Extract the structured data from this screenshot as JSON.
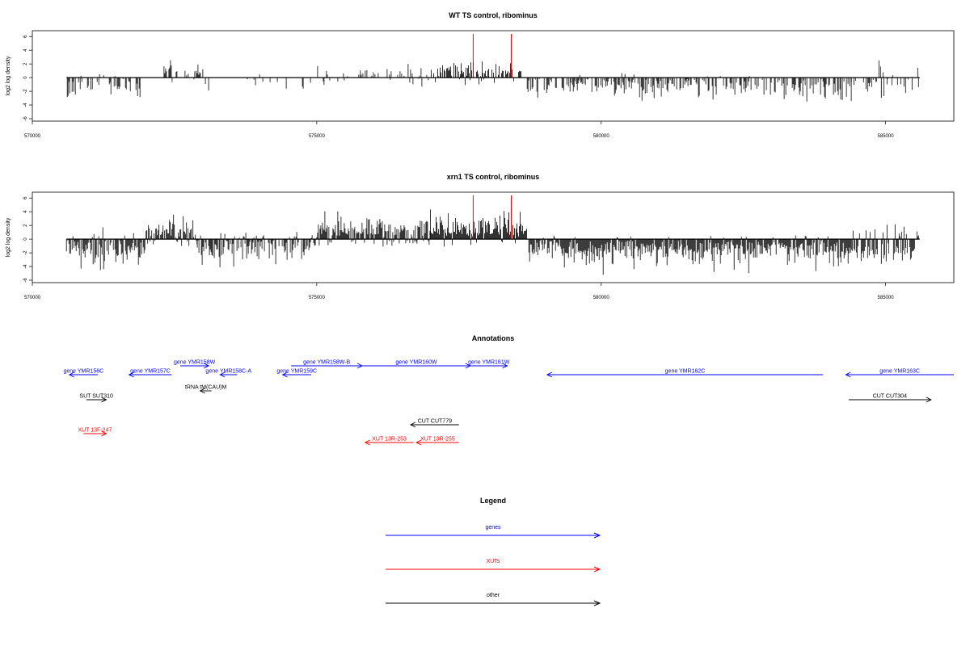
{
  "chart_data": [
    {
      "type": "bar",
      "title": "WT TS control, ribominus",
      "ylabel": "log2 log density",
      "xlabel": "",
      "xlim": [
        570000,
        586200
      ],
      "ylim": [
        -6,
        6.5
      ],
      "x_ticks": [
        "570000",
        "575000",
        "580000",
        "585000"
      ],
      "y_ticks": [
        "6",
        "4",
        "2",
        "0",
        "-2",
        "-4",
        "-6"
      ],
      "grid": false,
      "description_of_data": "per-position log2 density bars from 570600 to 585600; dense positive signal 577000-578600; mostly negative 578700-585600",
      "segments": [
        {
          "from": 570600,
          "to": 571900,
          "density": 0.45,
          "pos_frac": 0.05,
          "pos_max": 1.2,
          "neg_max": 4.2
        },
        {
          "from": 572300,
          "to": 573000,
          "density": 0.5,
          "pos_frac": 0.85,
          "pos_max": 3.2,
          "neg_max": 1.5
        },
        {
          "from": 573000,
          "to": 575000,
          "density": 0.12,
          "pos_frac": 0.3,
          "pos_max": 1.2,
          "neg_max": 2.6
        },
        {
          "from": 575000,
          "to": 577000,
          "density": 0.3,
          "pos_frac": 0.65,
          "pos_max": 2.6,
          "neg_max": 1.6
        },
        {
          "from": 577000,
          "to": 578600,
          "density": 0.65,
          "pos_frac": 0.85,
          "pos_max": 3.4,
          "neg_max": 1.5
        },
        {
          "from": 578700,
          "to": 581000,
          "density": 0.6,
          "pos_frac": 0.08,
          "pos_max": 1.2,
          "neg_max": 4.0
        },
        {
          "from": 581000,
          "to": 584400,
          "density": 0.55,
          "pos_frac": 0.05,
          "pos_max": 1.0,
          "neg_max": 4.3
        },
        {
          "from": 584400,
          "to": 585600,
          "density": 0.4,
          "pos_frac": 0.3,
          "pos_max": 3.0,
          "neg_max": 3.6
        }
      ],
      "markers": [
        {
          "x": 577750,
          "color": "#ff0000"
        },
        {
          "x": 578420,
          "color": "#ff0000"
        }
      ]
    },
    {
      "type": "bar",
      "title": "xrn1 TS control, ribominus",
      "ylabel": "log2 log density",
      "xlabel": "",
      "xlim": [
        570000,
        586200
      ],
      "ylim": [
        -6,
        6.5
      ],
      "x_ticks": [
        "570000",
        "575000",
        "580000",
        "585000"
      ],
      "y_ticks": [
        "6",
        "4",
        "2",
        "0",
        "-2",
        "-4",
        "-6"
      ],
      "grid": false,
      "description_of_data": "denser per-position log2 density bars from 570600 to 585600; strong positive signal 575000-578700; negative elsewhere",
      "segments": [
        {
          "from": 570600,
          "to": 572000,
          "density": 0.9,
          "pos_frac": 0.08,
          "pos_max": 2.2,
          "neg_max": 5.8
        },
        {
          "from": 572000,
          "to": 572900,
          "density": 0.9,
          "pos_frac": 0.85,
          "pos_max": 4.2,
          "neg_max": 1.5
        },
        {
          "from": 572900,
          "to": 575000,
          "density": 0.7,
          "pos_frac": 0.15,
          "pos_max": 1.5,
          "neg_max": 4.8
        },
        {
          "from": 575000,
          "to": 577000,
          "density": 0.9,
          "pos_frac": 0.8,
          "pos_max": 4.5,
          "neg_max": 2.0
        },
        {
          "from": 577000,
          "to": 578700,
          "density": 1.0,
          "pos_frac": 0.9,
          "pos_max": 5.0,
          "neg_max": 1.5
        },
        {
          "from": 578700,
          "to": 584400,
          "density": 0.95,
          "pos_frac": 0.05,
          "pos_max": 1.2,
          "neg_max": 5.5
        },
        {
          "from": 584400,
          "to": 585600,
          "density": 0.8,
          "pos_frac": 0.35,
          "pos_max": 3.2,
          "neg_max": 5.8
        }
      ],
      "markers": [
        {
          "x": 577750,
          "color": "#ff0000"
        },
        {
          "x": 578420,
          "color": "#ff0000"
        }
      ]
    }
  ],
  "annotations": {
    "title": "Annotations",
    "colors": {
      "genes": "#0000ff",
      "xuts": "#ff0000",
      "other": "#000000"
    },
    "features": [
      {
        "label": "gene YMR156C",
        "start": 570650,
        "end": 571150,
        "strand": "-",
        "kind": "genes",
        "row": 2
      },
      {
        "label": "gene YMR157C",
        "start": 571700,
        "end": 572450,
        "strand": "-",
        "kind": "genes",
        "row": 2
      },
      {
        "label": "gene YMR158W",
        "start": 572600,
        "end": 573100,
        "strand": "+",
        "kind": "genes",
        "row": 1
      },
      {
        "label": "gene YMR158C-A",
        "start": 573300,
        "end": 573600,
        "strand": "-",
        "kind": "genes",
        "row": 2
      },
      {
        "label": "tRNA tM(CAU)M",
        "start": 572950,
        "end": 573150,
        "strand": "-",
        "kind": "other",
        "row": 3
      },
      {
        "label": "SUT SUT310",
        "start": 570950,
        "end": 571300,
        "strand": "+",
        "kind": "other",
        "row": 4
      },
      {
        "label": "XUT 13F-247",
        "start": 570900,
        "end": 571300,
        "strand": "+",
        "kind": "xuts",
        "row": 6
      },
      {
        "label": "gene YMR158W-B",
        "start": 574550,
        "end": 575800,
        "strand": "+",
        "kind": "genes",
        "row": 1
      },
      {
        "label": "gene YMR159C",
        "start": 574400,
        "end": 574900,
        "strand": "-",
        "kind": "genes",
        "row": 2
      },
      {
        "label": "gene YMR160W",
        "start": 575800,
        "end": 577700,
        "strand": "+",
        "kind": "genes",
        "row": 1
      },
      {
        "label": "gene YMR161W",
        "start": 577700,
        "end": 578350,
        "strand": "+",
        "kind": "genes",
        "row": 1
      },
      {
        "label": "gene YMR162C",
        "start": 579050,
        "end": 583900,
        "strand": "-",
        "kind": "genes",
        "row": 2
      },
      {
        "label": "gene YMR163C",
        "start": 584300,
        "end": 586200,
        "strand": "-",
        "kind": "genes",
        "row": 2
      },
      {
        "label": "CUT CUT779",
        "start": 576650,
        "end": 577500,
        "strand": "-",
        "kind": "other",
        "row": 5
      },
      {
        "label": "XUT 13R-253",
        "start": 575850,
        "end": 576700,
        "strand": "-",
        "kind": "xuts",
        "row": 7
      },
      {
        "label": "XUT 13R-255",
        "start": 576750,
        "end": 577500,
        "strand": "-",
        "kind": "xuts",
        "row": 7
      },
      {
        "label": "CUT CUT304",
        "start": 584350,
        "end": 585800,
        "strand": "+",
        "kind": "other",
        "row": 4
      }
    ]
  },
  "legend": {
    "title": "Legend",
    "entries": [
      {
        "label": "genes",
        "color": "#0000ff"
      },
      {
        "label": "XUTs",
        "color": "#ff0000"
      },
      {
        "label": "other",
        "color": "#000000"
      }
    ]
  }
}
